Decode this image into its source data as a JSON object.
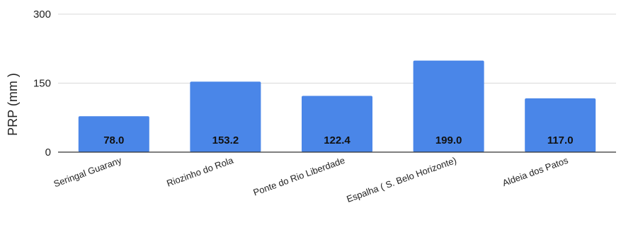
{
  "chart_data": {
    "type": "bar",
    "title": "",
    "xlabel": "",
    "ylabel": "PRP (mm )",
    "categories": [
      "Seringal Guarany",
      "Riozinho do Rola",
      "Ponte do Rio Liberdade",
      "Espalha ( S. Belo Horizonte)",
      "Aldeia dos Patos"
    ],
    "values": [
      78.0,
      153.2,
      122.4,
      199.0,
      117.0
    ],
    "data_labels": [
      "78.0",
      "153.2",
      "122.4",
      "199.0",
      "117.0"
    ],
    "yticks": [
      "0",
      "150",
      "300"
    ],
    "ylim": [
      0,
      300
    ],
    "grid": true,
    "bar_color": "#4a86e8",
    "grid_color": "#d9d9d9",
    "axis_color": "#333333"
  }
}
